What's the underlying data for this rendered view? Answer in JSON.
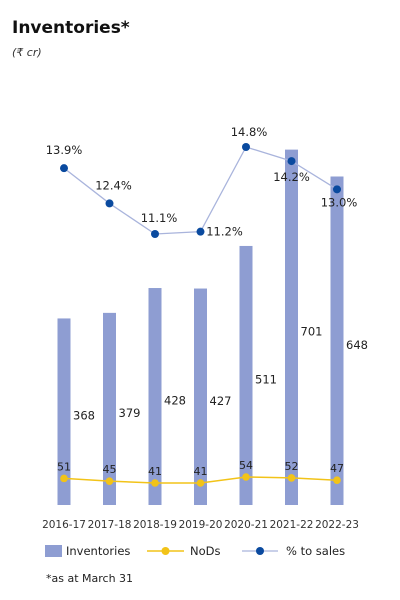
{
  "title": "Inventories*",
  "subtitle": "(₹ cr)",
  "footnote": "*as at March 31",
  "chart_data": {
    "type": "bar",
    "categories": [
      "2016-17",
      "2017-18",
      "2018-19",
      "2019-20",
      "2020-21",
      "2021-22",
      "2022-23"
    ],
    "bar_axis_range": [
      0,
      720
    ],
    "series": [
      {
        "name": "Inventories",
        "kind": "bar",
        "color": "#8e9dd2",
        "values": [
          368,
          379,
          428,
          427,
          511,
          701,
          648
        ],
        "labels": [
          "368",
          "379",
          "428",
          "427",
          "511",
          "701",
          "648"
        ]
      },
      {
        "name": "NoDs",
        "kind": "line",
        "color": "#f2c318",
        "values": [
          51,
          45,
          41,
          41,
          54,
          52,
          47
        ],
        "labels": [
          "51",
          "45",
          "41",
          "41",
          "54",
          "52",
          "47"
        ]
      },
      {
        "name": "% to sales",
        "kind": "line",
        "color": "#0a4a9f",
        "line_color": "#a9b4dc",
        "values": [
          13.9,
          12.4,
          11.1,
          11.2,
          14.8,
          14.2,
          13.0
        ],
        "labels": [
          "13.9%",
          "12.4%",
          "11.1%",
          "11.2%",
          "14.8%",
          "14.2%",
          "13.0%"
        ]
      }
    ],
    "legend_position": "bottom",
    "grid": false
  }
}
